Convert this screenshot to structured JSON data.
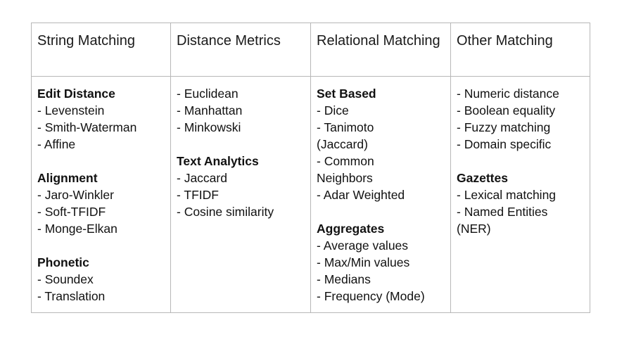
{
  "headers": [
    "String Matching",
    "Distance Metrics",
    "Relational Matching",
    "Other Matching"
  ],
  "columns": [
    {
      "groups": [
        {
          "title": "Edit Distance",
          "items": [
            "- Levenstein",
            "- Smith-Waterman",
            "- Affine"
          ]
        },
        {
          "title": "Alignment",
          "items": [
            "- Jaro-Winkler",
            "- Soft-TFIDF",
            "- Monge-Elkan"
          ]
        },
        {
          "title": "Phonetic",
          "items": [
            "- Soundex",
            "- Translation"
          ]
        }
      ]
    },
    {
      "groups": [
        {
          "title": "",
          "items": [
            "- Euclidean",
            "- Manhattan",
            "- Minkowski"
          ]
        },
        {
          "title": "Text Analytics",
          "items": [
            "- Jaccard",
            "- TFIDF",
            "- Cosine similarity"
          ]
        }
      ]
    },
    {
      "groups": [
        {
          "title": "Set Based",
          "items": [
            "- Dice",
            "- Tanimoto (Jaccard)",
            "- Common Neighbors",
            "- Adar Weighted"
          ]
        },
        {
          "title": "Aggregates",
          "items": [
            "- Average values",
            "- Max/Min values",
            "- Medians",
            "- Frequency (Mode)"
          ]
        }
      ]
    },
    {
      "groups": [
        {
          "title": "",
          "items": [
            "- Numeric distance",
            "- Boolean equality",
            "- Fuzzy matching",
            "- Domain specific"
          ]
        },
        {
          "title": "Gazettes",
          "items": [
            "- Lexical matching",
            "- Named Entities (NER)"
          ]
        }
      ]
    }
  ]
}
